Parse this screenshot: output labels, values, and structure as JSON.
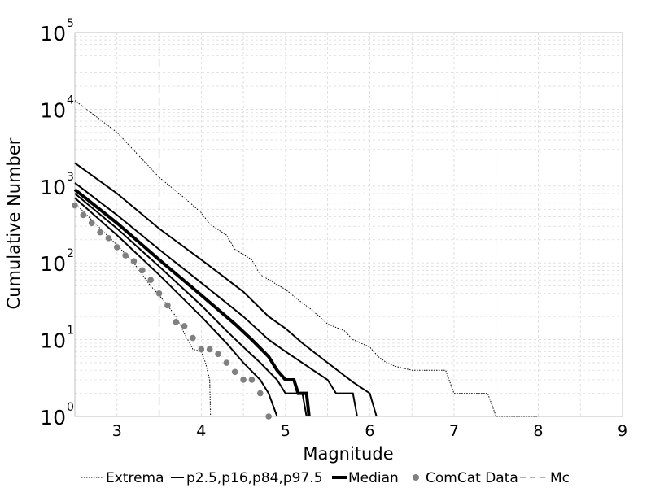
{
  "chart_data": {
    "type": "line",
    "title": "",
    "xlabel": "Magnitude",
    "ylabel": "Cumulative Number",
    "xlim": [
      2.5,
      9
    ],
    "ylim": [
      1,
      100000
    ],
    "y_scale": "log",
    "grid": true,
    "x_ticks": [
      {
        "value": 3,
        "label": "3"
      },
      {
        "value": 4,
        "label": "4"
      },
      {
        "value": 5,
        "label": "5"
      },
      {
        "value": 6,
        "label": "6"
      },
      {
        "value": 7,
        "label": "7"
      },
      {
        "value": 8,
        "label": "8"
      },
      {
        "value": 9,
        "label": "9"
      }
    ],
    "y_ticks": [
      {
        "value": 1,
        "base": "10",
        "exp": "0"
      },
      {
        "value": 10,
        "base": "10",
        "exp": "1"
      },
      {
        "value": 100,
        "base": "10",
        "exp": "2"
      },
      {
        "value": 1000,
        "base": "10",
        "exp": "3"
      },
      {
        "value": 10000,
        "base": "10",
        "exp": "4"
      },
      {
        "value": 100000,
        "base": "10",
        "exp": "5"
      }
    ],
    "legend_position": "bottom",
    "legend": [
      {
        "label": "Extrema",
        "style": "dotted"
      },
      {
        "label": "p2.5,p16,p84,p97.5",
        "style": "solid"
      },
      {
        "label": "Median",
        "style": "bold"
      },
      {
        "label": "ComCat Data",
        "style": "marker"
      },
      {
        "label": "Mc",
        "style": "dashed"
      }
    ],
    "colors": {
      "lines": "#000000",
      "comcat": "#808080",
      "mc": "#808080",
      "grid": "#d9d9d9"
    },
    "mc": 3.5,
    "series": [
      {
        "role": "extrema-max",
        "style": "dotted",
        "points": [
          [
            2.5,
            13000
          ],
          [
            3.0,
            5000
          ],
          [
            3.5,
            1300
          ],
          [
            3.8,
            700
          ],
          [
            4.0,
            450
          ],
          [
            4.1,
            320
          ],
          [
            4.3,
            230
          ],
          [
            4.4,
            150
          ],
          [
            4.6,
            110
          ],
          [
            4.7,
            70
          ],
          [
            5.0,
            45
          ],
          [
            5.2,
            30
          ],
          [
            5.3,
            25
          ],
          [
            5.5,
            16
          ],
          [
            5.7,
            13
          ],
          [
            5.8,
            10
          ],
          [
            6.0,
            8
          ],
          [
            6.1,
            6
          ],
          [
            6.2,
            5
          ],
          [
            6.3,
            4.5
          ],
          [
            6.5,
            4
          ],
          [
            6.9,
            4
          ],
          [
            7.0,
            2
          ],
          [
            7.4,
            2
          ],
          [
            7.5,
            1
          ],
          [
            8.0,
            1
          ]
        ]
      },
      {
        "role": "extrema-min",
        "style": "dotted",
        "points": [
          [
            2.5,
            600
          ],
          [
            3.0,
            170
          ],
          [
            3.2,
            100
          ],
          [
            3.3,
            70
          ],
          [
            3.4,
            50
          ],
          [
            3.5,
            38
          ],
          [
            3.6,
            28
          ],
          [
            3.7,
            20
          ],
          [
            3.8,
            12
          ],
          [
            3.9,
            7.5
          ],
          [
            4.0,
            7
          ],
          [
            4.05,
            5
          ],
          [
            4.1,
            3
          ],
          [
            4.11,
            1
          ]
        ]
      },
      {
        "role": "p97.5",
        "style": "solid",
        "points": [
          [
            2.5,
            2000
          ],
          [
            3.0,
            800
          ],
          [
            3.5,
            280
          ],
          [
            4.0,
            110
          ],
          [
            4.5,
            42
          ],
          [
            4.8,
            20
          ],
          [
            5.0,
            14
          ],
          [
            5.2,
            9
          ],
          [
            5.5,
            5
          ],
          [
            5.8,
            2.8
          ],
          [
            6.0,
            2
          ],
          [
            6.08,
            1
          ]
        ]
      },
      {
        "role": "p84",
        "style": "solid",
        "points": [
          [
            2.5,
            1100
          ],
          [
            3.0,
            420
          ],
          [
            3.5,
            150
          ],
          [
            4.0,
            55
          ],
          [
            4.5,
            20
          ],
          [
            4.8,
            10
          ],
          [
            5.0,
            7
          ],
          [
            5.3,
            4.2
          ],
          [
            5.5,
            3
          ],
          [
            5.6,
            2
          ],
          [
            5.8,
            2
          ],
          [
            5.85,
            1
          ]
        ]
      },
      {
        "role": "p16",
        "style": "solid",
        "points": [
          [
            2.5,
            800
          ],
          [
            3.0,
            280
          ],
          [
            3.5,
            90
          ],
          [
            4.0,
            28
          ],
          [
            4.3,
            13
          ],
          [
            4.5,
            8
          ],
          [
            4.7,
            5
          ],
          [
            4.9,
            3
          ],
          [
            5.0,
            2
          ],
          [
            5.2,
            2
          ],
          [
            5.25,
            1
          ]
        ]
      },
      {
        "role": "p2.5",
        "style": "solid",
        "points": [
          [
            2.5,
            700
          ],
          [
            3.0,
            230
          ],
          [
            3.5,
            70
          ],
          [
            4.0,
            20
          ],
          [
            4.3,
            9
          ],
          [
            4.5,
            5
          ],
          [
            4.7,
            3
          ],
          [
            4.8,
            2
          ],
          [
            4.9,
            1
          ]
        ]
      },
      {
        "role": "median",
        "style": "bold",
        "points": [
          [
            2.5,
            900
          ],
          [
            3.0,
            330
          ],
          [
            3.5,
            110
          ],
          [
            4.0,
            38
          ],
          [
            4.4,
            16
          ],
          [
            4.6,
            10
          ],
          [
            4.8,
            6
          ],
          [
            4.9,
            4
          ],
          [
            5.0,
            3
          ],
          [
            5.1,
            3
          ],
          [
            5.15,
            2
          ],
          [
            5.25,
            2
          ],
          [
            5.28,
            1
          ]
        ]
      }
    ],
    "comcat_data": [
      [
        2.5,
        560
      ],
      [
        2.6,
        420
      ],
      [
        2.7,
        330
      ],
      [
        2.8,
        250
      ],
      [
        2.9,
        210
      ],
      [
        3.0,
        160
      ],
      [
        3.1,
        125
      ],
      [
        3.2,
        105
      ],
      [
        3.3,
        80
      ],
      [
        3.4,
        60
      ],
      [
        3.5,
        40
      ],
      [
        3.6,
        28
      ],
      [
        3.7,
        17
      ],
      [
        3.8,
        15
      ],
      [
        3.9,
        10.5
      ],
      [
        4.0,
        7.5
      ],
      [
        4.1,
        7.5
      ],
      [
        4.2,
        6.5
      ],
      [
        4.3,
        5
      ],
      [
        4.4,
        3.8
      ],
      [
        4.5,
        3
      ],
      [
        4.6,
        3
      ],
      [
        4.7,
        2
      ],
      [
        4.8,
        1
      ]
    ]
  }
}
